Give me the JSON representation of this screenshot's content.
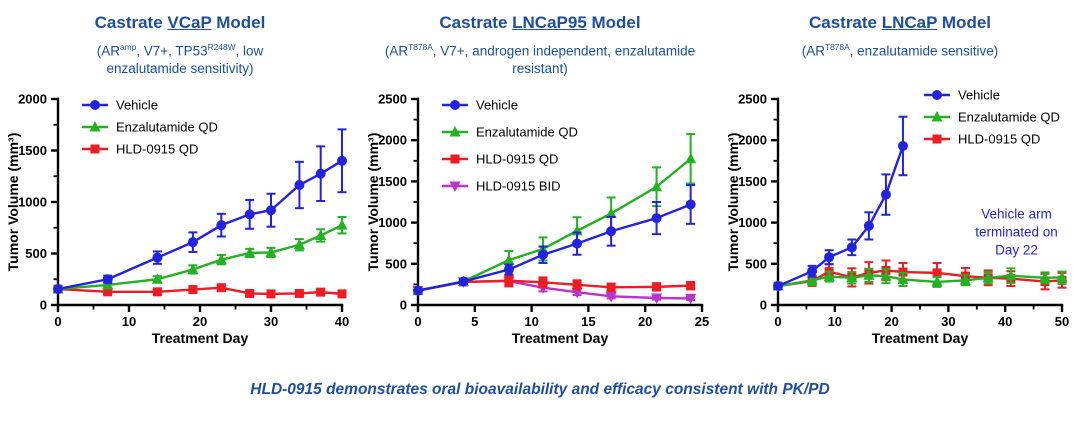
{
  "colors": {
    "title_blue": "#1E4E9F",
    "caption_blue": "#1E4E9F",
    "axis_black": "#000000",
    "vehicle_blue": "#2222DF",
    "enzalutamide_green": "#24B224",
    "hld_qd_red": "#EC1C24",
    "hld_bid_magenta": "#BB33CC"
  },
  "panels": [
    {
      "title_parts": [
        {
          "text": "Castrate "
        },
        {
          "text": "VCaP",
          "underline": true
        },
        {
          "text": " Model"
        }
      ],
      "subtitle_parts": [
        {
          "text": "(AR"
        },
        {
          "text": "amp",
          "sup": true
        },
        {
          "text": ", V7+, TP53"
        },
        {
          "text": "R248W",
          "sup": true
        },
        {
          "text": ", low enzalutamide sensitivity)"
        }
      ]
    },
    {
      "title_parts": [
        {
          "text": "Castrate "
        },
        {
          "text": "LNCaP95",
          "underline": true
        },
        {
          "text": " Model"
        }
      ],
      "subtitle_parts": [
        {
          "text": "(AR"
        },
        {
          "text": "T878A",
          "sup": true
        },
        {
          "text": ", V7+, androgen independent, enzalutamide resistant)"
        }
      ]
    },
    {
      "title_parts": [
        {
          "text": "Castrate "
        },
        {
          "text": "LNCaP",
          "underline": true
        },
        {
          "text": " Model"
        }
      ],
      "subtitle_parts": [
        {
          "text": "(AR"
        },
        {
          "text": "T878A",
          "sup": true
        },
        {
          "text": ", enzalutamide sensitive)"
        }
      ]
    }
  ],
  "chart_data": [
    {
      "type": "line",
      "id": "vcap",
      "title": "Castrate VCaP Model",
      "xlabel": "Treatment Day",
      "ylabel": "Tumor Volume (mm³)",
      "xlim": [
        0,
        40
      ],
      "ylim": [
        0,
        2000
      ],
      "xticks": [
        0,
        10,
        20,
        30,
        40
      ],
      "yticks": [
        0,
        500,
        1000,
        1500,
        2000
      ],
      "x_minor_ticks": [
        5,
        15,
        25,
        35
      ],
      "y_minor_ticks": [
        250,
        750,
        1250,
        1750
      ],
      "grid": false,
      "legend_position": "top-left",
      "series": [
        {
          "name": "Vehicle",
          "color": "#2222DF",
          "marker": "circle",
          "x": [
            0,
            7,
            14,
            19,
            23,
            27,
            30,
            34,
            37,
            40
          ],
          "y": [
            155,
            250,
            460,
            610,
            775,
            880,
            920,
            1165,
            1275,
            1400
          ],
          "err": [
            25,
            35,
            60,
            95,
            110,
            140,
            160,
            225,
            265,
            305
          ]
        },
        {
          "name": "Enzalutamide QD",
          "color": "#24B224",
          "marker": "triangle-up",
          "x": [
            0,
            7,
            14,
            19,
            23,
            27,
            30,
            34,
            37,
            40
          ],
          "y": [
            155,
            195,
            250,
            345,
            440,
            505,
            510,
            585,
            675,
            775
          ],
          "err": [
            20,
            25,
            30,
            40,
            45,
            40,
            45,
            55,
            60,
            80
          ]
        },
        {
          "name": "HLD-0915 QD",
          "color": "#EC1C24",
          "marker": "square",
          "x": [
            0,
            7,
            14,
            19,
            23,
            27,
            30,
            34,
            37,
            40
          ],
          "y": [
            155,
            128,
            128,
            150,
            168,
            112,
            108,
            112,
            125,
            108
          ],
          "err": [
            18,
            20,
            22,
            25,
            28,
            20,
            20,
            20,
            25,
            20
          ]
        }
      ]
    },
    {
      "type": "line",
      "id": "lncap95",
      "title": "Castrate LNCaP95 Model",
      "xlabel": "Treatment Day",
      "ylabel": "Tumor Volume (mm³)",
      "xlim": [
        0,
        25
      ],
      "ylim": [
        0,
        2500
      ],
      "xticks": [
        0,
        5,
        10,
        15,
        20,
        25
      ],
      "yticks": [
        0,
        500,
        1000,
        1500,
        2000,
        2500
      ],
      "x_minor_ticks": [],
      "y_minor_ticks": [
        250,
        750,
        1250,
        1750,
        2250
      ],
      "grid": false,
      "legend_position": "top-left",
      "series": [
        {
          "name": "Vehicle",
          "color": "#2222DF",
          "marker": "circle",
          "x": [
            0,
            4,
            8,
            11,
            14,
            17,
            21,
            24
          ],
          "y": [
            175,
            285,
            430,
            610,
            745,
            895,
            1055,
            1220
          ],
          "err": [
            25,
            30,
            60,
            100,
            135,
            175,
            195,
            235
          ]
        },
        {
          "name": "Enzalutamide QD",
          "color": "#24B224",
          "marker": "triangle-up",
          "x": [
            0,
            4,
            8,
            11,
            14,
            17,
            21,
            24
          ],
          "y": [
            175,
            285,
            545,
            680,
            900,
            1110,
            1435,
            1775
          ],
          "err": [
            25,
            30,
            110,
            140,
            165,
            195,
            235,
            300
          ]
        },
        {
          "name": "HLD-0915 QD",
          "color": "#EC1C24",
          "marker": "square",
          "x": [
            0,
            4,
            8,
            11,
            14,
            17,
            21,
            24
          ],
          "y": [
            175,
            280,
            295,
            275,
            245,
            215,
            220,
            235
          ],
          "err": [
            25,
            35,
            65,
            60,
            55,
            45,
            45,
            45
          ]
        },
        {
          "name": "HLD-0915 BID",
          "color": "#BB33CC",
          "marker": "triangle-down",
          "x": [
            0,
            4,
            8,
            11,
            14,
            17,
            21,
            24
          ],
          "y": [
            175,
            280,
            290,
            210,
            155,
            105,
            85,
            80
          ],
          "err": [
            25,
            35,
            65,
            45,
            35,
            25,
            20,
            20
          ]
        }
      ]
    },
    {
      "type": "line",
      "id": "lncap",
      "title": "Castrate LNCaP Model",
      "xlabel": "Treatment Day",
      "ylabel": "Tumor Volume (mm³)",
      "xlim": [
        0,
        50
      ],
      "ylim": [
        0,
        2500
      ],
      "xticks": [
        0,
        10,
        20,
        30,
        40,
        50
      ],
      "yticks": [
        0,
        500,
        1000,
        1500,
        2000,
        2500
      ],
      "x_minor_ticks": [
        5,
        15,
        25,
        35,
        45
      ],
      "y_minor_ticks": [
        250,
        750,
        1250,
        1750,
        2250
      ],
      "grid": false,
      "legend_position": "top-right",
      "annotation": {
        "lines": [
          "Vehicle arm",
          "terminated on",
          "Day 22"
        ],
        "color": "#2222DF",
        "x": 42,
        "y": 1050
      },
      "series": [
        {
          "name": "Vehicle",
          "color": "#2222DF",
          "marker": "circle",
          "x": [
            0,
            6,
            9,
            13,
            16,
            19,
            22
          ],
          "y": [
            230,
            410,
            580,
            700,
            960,
            1340,
            1930
          ],
          "err": [
            35,
            65,
            85,
            95,
            165,
            245,
            355
          ]
        },
        {
          "name": "Enzalutamide QD",
          "color": "#24B224",
          "marker": "triangle-up",
          "x": [
            0,
            6,
            9,
            13,
            16,
            19,
            22,
            28,
            33,
            37,
            41,
            47,
            50
          ],
          "y": [
            230,
            300,
            345,
            330,
            360,
            350,
            310,
            280,
            300,
            330,
            355,
            330,
            335
          ],
          "err": [
            35,
            60,
            60,
            70,
            80,
            85,
            80,
            60,
            60,
            70,
            90,
            65,
            70
          ]
        },
        {
          "name": "HLD-0915 QD",
          "color": "#EC1C24",
          "marker": "square",
          "x": [
            0,
            6,
            9,
            13,
            16,
            19,
            22,
            28,
            33,
            37,
            41,
            47,
            50
          ],
          "y": [
            230,
            290,
            405,
            335,
            390,
            420,
            400,
            390,
            350,
            330,
            320,
            285,
            300
          ],
          "err": [
            35,
            60,
            90,
            110,
            130,
            120,
            110,
            120,
            100,
            90,
            90,
            95,
            90
          ]
        }
      ]
    }
  ],
  "caption": {
    "text": "HLD-0915 demonstrates oral bioavailability and efficacy consistent with PK/PD"
  }
}
